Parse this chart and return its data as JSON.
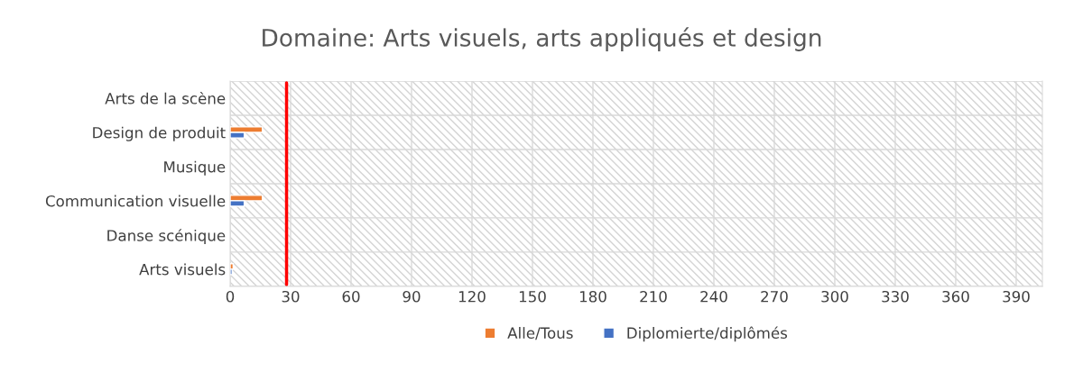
{
  "chart_data": {
    "type": "bar",
    "orientation": "horizontal",
    "title": "Domaine: Arts visuels, arts appliqués et design",
    "categories": [
      "Arts de la scène",
      "Design de produit",
      "Musique",
      "Communication visuelle",
      "Danse scénique",
      "Arts visuels"
    ],
    "series": [
      {
        "name": "Alle/Tous",
        "color": "#ed7d31",
        "values": [
          null,
          16,
          null,
          16,
          null,
          1.5
        ]
      },
      {
        "name": "Diplomierte/diplômés",
        "color": "#4472c4",
        "values": [
          null,
          7,
          null,
          7,
          null,
          1
        ]
      }
    ],
    "xlim": [
      0,
      403
    ],
    "xticks": [
      0,
      30,
      60,
      90,
      120,
      150,
      180,
      210,
      240,
      270,
      300,
      330,
      360,
      390
    ],
    "ref_lines": [
      {
        "axis": "x",
        "value": 28,
        "color": "#ff0000"
      }
    ],
    "grid": true,
    "legend": "bottom"
  }
}
